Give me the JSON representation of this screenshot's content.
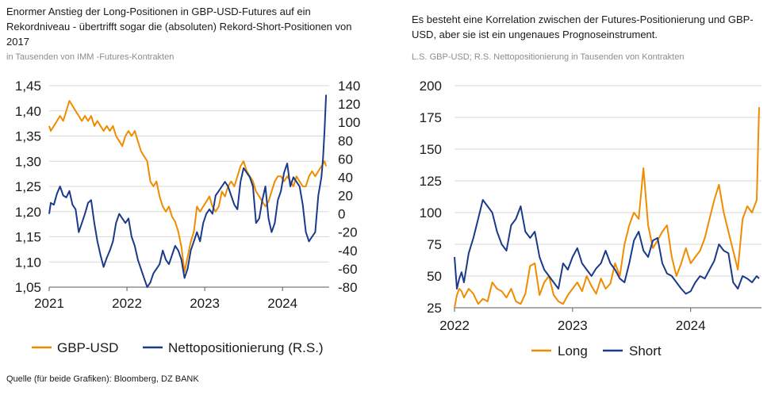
{
  "colors": {
    "orange": "#f08c00",
    "navy": "#1c3a8a",
    "grid": "#d9d9d9",
    "axis": "#595959"
  },
  "left": {
    "title": "Enormer Anstieg der Long-Positionen in GBP-USD-Futures auf ein Rekordniveau - übertrifft sogar die (absoluten) Rekord-Short-Positionen von 2017",
    "subtitle": "in Tausenden von IMM -Futures-Kontrakten"
  },
  "right": {
    "title": "Es besteht eine Korrelation zwischen der Futures-Positionierung und GBP-USD, aber sie ist ein ungenaues Prognoseinstrument.",
    "subtitle": "L.S. GBP-USD; R.S. Nettopositionierung in Tausenden von Kontrakten"
  },
  "source": "Quelle (für beide Grafiken): Bloomberg, DZ BANK",
  "chart_data": [
    {
      "type": "line",
      "x_ticks": [
        "2021",
        "2022",
        "2023",
        "2024"
      ],
      "xlim": [
        2021.0,
        2024.6
      ],
      "y_left": {
        "ticks": [
          "1,05",
          "1,10",
          "1,15",
          "1,20",
          "1,25",
          "1,30",
          "1,35",
          "1,40",
          "1,45"
        ],
        "lim": [
          1.05,
          1.45
        ]
      },
      "y_right": {
        "ticks": [
          "-80",
          "-60",
          "-40",
          "-20",
          "0",
          "20",
          "40",
          "60",
          "80",
          "100",
          "120",
          "140"
        ],
        "lim": [
          -80,
          140
        ]
      },
      "legend_position": "bottom",
      "series": [
        {
          "name": "GBP-USD",
          "axis": "left",
          "color": "#f08c00",
          "x": [
            2021.0,
            2021.02,
            2021.06,
            2021.1,
            2021.14,
            2021.18,
            2021.22,
            2021.26,
            2021.3,
            2021.34,
            2021.38,
            2021.42,
            2021.46,
            2021.5,
            2021.54,
            2021.58,
            2021.62,
            2021.66,
            2021.7,
            2021.74,
            2021.78,
            2021.82,
            2021.86,
            2021.9,
            2021.94,
            2021.98,
            2022.02,
            2022.06,
            2022.1,
            2022.14,
            2022.18,
            2022.22,
            2022.26,
            2022.3,
            2022.34,
            2022.38,
            2022.42,
            2022.46,
            2022.5,
            2022.54,
            2022.58,
            2022.62,
            2022.66,
            2022.7,
            2022.74,
            2022.78,
            2022.82,
            2022.86,
            2022.9,
            2022.94,
            2022.98,
            2023.02,
            2023.06,
            2023.1,
            2023.14,
            2023.18,
            2023.22,
            2023.26,
            2023.3,
            2023.34,
            2023.38,
            2023.42,
            2023.46,
            2023.5,
            2023.54,
            2023.58,
            2023.62,
            2023.66,
            2023.7,
            2023.74,
            2023.78,
            2023.82,
            2023.86,
            2023.9,
            2023.94,
            2023.98,
            2024.02,
            2024.06,
            2024.1,
            2024.14,
            2024.18,
            2024.22,
            2024.26,
            2024.3,
            2024.34,
            2024.38,
            2024.42,
            2024.46,
            2024.5,
            2024.54,
            2024.56
          ],
          "values": [
            1.37,
            1.36,
            1.37,
            1.38,
            1.39,
            1.38,
            1.4,
            1.42,
            1.41,
            1.4,
            1.39,
            1.38,
            1.39,
            1.38,
            1.39,
            1.37,
            1.38,
            1.37,
            1.36,
            1.37,
            1.36,
            1.37,
            1.35,
            1.34,
            1.33,
            1.35,
            1.36,
            1.35,
            1.36,
            1.34,
            1.32,
            1.31,
            1.3,
            1.26,
            1.25,
            1.26,
            1.23,
            1.21,
            1.2,
            1.21,
            1.19,
            1.18,
            1.16,
            1.13,
            1.08,
            1.11,
            1.14,
            1.16,
            1.21,
            1.2,
            1.21,
            1.22,
            1.23,
            1.21,
            1.2,
            1.21,
            1.24,
            1.23,
            1.25,
            1.26,
            1.25,
            1.27,
            1.29,
            1.3,
            1.28,
            1.27,
            1.26,
            1.24,
            1.23,
            1.22,
            1.21,
            1.22,
            1.24,
            1.26,
            1.27,
            1.27,
            1.26,
            1.27,
            1.26,
            1.25,
            1.27,
            1.26,
            1.25,
            1.25,
            1.27,
            1.28,
            1.27,
            1.28,
            1.29,
            1.3,
            1.29
          ]
        },
        {
          "name": "Nettopositionierung (R.S.)",
          "axis": "right",
          "color": "#1c3a8a",
          "x": [
            2021.0,
            2021.02,
            2021.06,
            2021.1,
            2021.14,
            2021.18,
            2021.22,
            2021.26,
            2021.3,
            2021.34,
            2021.38,
            2021.42,
            2021.46,
            2021.5,
            2021.54,
            2021.58,
            2021.62,
            2021.66,
            2021.7,
            2021.74,
            2021.78,
            2021.82,
            2021.86,
            2021.9,
            2021.94,
            2021.98,
            2022.02,
            2022.06,
            2022.1,
            2022.14,
            2022.18,
            2022.22,
            2022.26,
            2022.3,
            2022.34,
            2022.38,
            2022.42,
            2022.46,
            2022.5,
            2022.54,
            2022.58,
            2022.62,
            2022.66,
            2022.7,
            2022.74,
            2022.78,
            2022.82,
            2022.86,
            2022.9,
            2022.94,
            2022.98,
            2023.02,
            2023.06,
            2023.1,
            2023.14,
            2023.18,
            2023.22,
            2023.26,
            2023.3,
            2023.34,
            2023.38,
            2023.42,
            2023.46,
            2023.5,
            2023.54,
            2023.58,
            2023.62,
            2023.66,
            2023.7,
            2023.74,
            2023.78,
            2023.82,
            2023.86,
            2023.9,
            2023.94,
            2023.98,
            2024.02,
            2024.06,
            2024.1,
            2024.14,
            2024.18,
            2024.22,
            2024.26,
            2024.3,
            2024.34,
            2024.38,
            2024.42,
            2024.46,
            2024.5,
            2024.52,
            2024.54,
            2024.56
          ],
          "values": [
            0,
            12,
            10,
            22,
            30,
            20,
            18,
            25,
            10,
            5,
            -20,
            -10,
            0,
            12,
            15,
            -10,
            -30,
            -45,
            -58,
            -48,
            -40,
            -30,
            -10,
            0,
            -5,
            -10,
            -5,
            -25,
            -35,
            -50,
            -60,
            -70,
            -80,
            -75,
            -65,
            -60,
            -55,
            -40,
            -50,
            -55,
            -45,
            -35,
            -40,
            -50,
            -70,
            -60,
            -40,
            -30,
            -20,
            -30,
            -10,
            0,
            5,
            0,
            20,
            25,
            30,
            35,
            30,
            20,
            10,
            5,
            35,
            50,
            45,
            40,
            30,
            -10,
            -5,
            15,
            30,
            -5,
            -20,
            -10,
            15,
            25,
            45,
            55,
            30,
            40,
            35,
            30,
            10,
            -20,
            -30,
            -25,
            -20,
            20,
            40,
            60,
            90,
            130
          ]
        }
      ]
    },
    {
      "type": "line",
      "x_ticks": [
        "2022",
        "2023",
        "2024"
      ],
      "xlim": [
        2022.0,
        2024.6
      ],
      "ylim": [
        25,
        200
      ],
      "y_ticks": [
        "25",
        "50",
        "75",
        "100",
        "125",
        "150",
        "175",
        "200"
      ],
      "legend_position": "bottom",
      "series": [
        {
          "name": "Long",
          "color": "#f08c00",
          "x": [
            2022.0,
            2022.02,
            2022.04,
            2022.06,
            2022.08,
            2022.12,
            2022.16,
            2022.2,
            2022.24,
            2022.28,
            2022.32,
            2022.36,
            2022.4,
            2022.44,
            2022.48,
            2022.52,
            2022.56,
            2022.6,
            2022.64,
            2022.68,
            2022.72,
            2022.76,
            2022.8,
            2022.84,
            2022.88,
            2022.92,
            2022.96,
            2023.0,
            2023.04,
            2023.08,
            2023.12,
            2023.16,
            2023.2,
            2023.24,
            2023.28,
            2023.32,
            2023.36,
            2023.4,
            2023.44,
            2023.48,
            2023.52,
            2023.56,
            2023.6,
            2023.64,
            2023.68,
            2023.72,
            2023.76,
            2023.8,
            2023.84,
            2023.88,
            2023.92,
            2023.96,
            2024.0,
            2024.04,
            2024.08,
            2024.12,
            2024.16,
            2024.2,
            2024.24,
            2024.28,
            2024.32,
            2024.36,
            2024.4,
            2024.44,
            2024.48,
            2024.52,
            2024.56,
            2024.58
          ],
          "values": [
            25,
            35,
            40,
            38,
            33,
            40,
            36,
            28,
            32,
            30,
            45,
            40,
            38,
            33,
            40,
            30,
            28,
            36,
            58,
            60,
            35,
            45,
            50,
            35,
            30,
            28,
            35,
            40,
            45,
            38,
            50,
            42,
            36,
            48,
            40,
            44,
            60,
            50,
            75,
            90,
            100,
            95,
            135,
            90,
            72,
            78,
            85,
            90,
            65,
            50,
            60,
            72,
            60,
            65,
            70,
            80,
            95,
            110,
            122,
            100,
            85,
            70,
            55,
            95,
            105,
            100,
            110,
            183
          ]
        },
        {
          "name": "Short",
          "color": "#1c3a8a",
          "x": [
            2022.0,
            2022.02,
            2022.04,
            2022.06,
            2022.08,
            2022.12,
            2022.16,
            2022.2,
            2022.24,
            2022.28,
            2022.32,
            2022.36,
            2022.4,
            2022.44,
            2022.48,
            2022.52,
            2022.56,
            2022.6,
            2022.64,
            2022.68,
            2022.72,
            2022.76,
            2022.8,
            2022.84,
            2022.88,
            2022.92,
            2022.96,
            2023.0,
            2023.04,
            2023.08,
            2023.12,
            2023.16,
            2023.2,
            2023.24,
            2023.28,
            2023.32,
            2023.36,
            2023.4,
            2023.44,
            2023.48,
            2023.52,
            2023.56,
            2023.6,
            2023.64,
            2023.68,
            2023.72,
            2023.76,
            2023.8,
            2023.84,
            2023.88,
            2023.92,
            2023.96,
            2024.0,
            2024.04,
            2024.08,
            2024.12,
            2024.16,
            2024.2,
            2024.24,
            2024.28,
            2024.32,
            2024.36,
            2024.4,
            2024.44,
            2024.48,
            2024.52,
            2024.56,
            2024.58
          ],
          "values": [
            65,
            40,
            48,
            53,
            45,
            68,
            80,
            95,
            110,
            105,
            100,
            85,
            75,
            70,
            90,
            95,
            105,
            85,
            80,
            85,
            65,
            55,
            50,
            45,
            40,
            60,
            55,
            65,
            72,
            60,
            55,
            50,
            56,
            60,
            70,
            60,
            55,
            48,
            45,
            60,
            78,
            85,
            70,
            65,
            78,
            80,
            60,
            52,
            50,
            45,
            40,
            36,
            38,
            45,
            50,
            48,
            55,
            62,
            75,
            70,
            68,
            45,
            40,
            50,
            48,
            45,
            50,
            48
          ]
        }
      ]
    }
  ]
}
